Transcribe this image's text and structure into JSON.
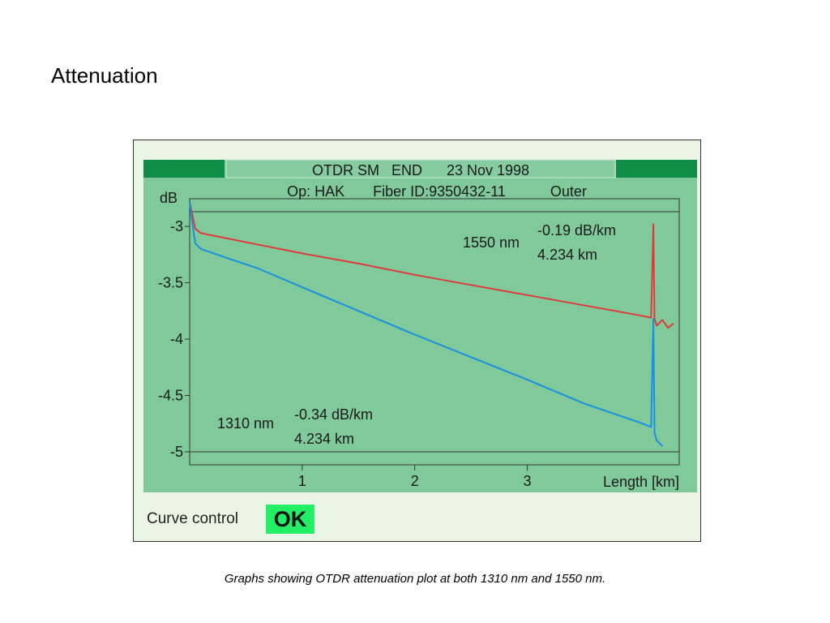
{
  "slide": {
    "title": "Attenuation",
    "caption": "Graphs showing OTDR attenuation plot at both 1310 nm and 1550 nm."
  },
  "otdr": {
    "header_line1": "OTDR SM   END      23 Nov 1998",
    "header_line2": "Op: HAK       Fiber ID:9350432-11           Outer",
    "curve_control_label": "Curve control",
    "status": "OK",
    "colors": {
      "panel_bg": "#eaf5e5",
      "plot_bg": "#80c99a",
      "header_bar": "#0f8c45",
      "header_box": "#7ec89a",
      "ok_bg": "#22ee66"
    }
  },
  "chart_data": {
    "type": "line",
    "title": "",
    "xlabel": "Length [km]",
    "ylabel": "dB",
    "xlim": [
      0,
      4.35
    ],
    "ylim": [
      -5.1,
      -2.7
    ],
    "x_ticks": [
      1,
      2,
      3
    ],
    "y_ticks": [
      -3,
      -3.5,
      -4,
      -4.5,
      -5
    ],
    "y_tick_labels": [
      "-3",
      "-3.5",
      "-4",
      "-4.5",
      "-5"
    ],
    "x_tick_labels": [
      "1",
      "2",
      "3"
    ],
    "grid": false,
    "series": [
      {
        "name": "1550 nm",
        "color": "#e03a3a",
        "annotation": [
          "-0.19 dB/km",
          "4.234 km"
        ],
        "x": [
          0.0,
          0.02,
          0.05,
          0.1,
          0.3,
          0.6,
          1.0,
          1.5,
          2.0,
          2.5,
          3.0,
          3.5,
          4.0,
          4.1,
          4.12,
          4.13,
          4.15,
          4.2,
          4.25,
          4.3
        ],
        "y": [
          -2.78,
          -2.88,
          -3.02,
          -3.06,
          -3.1,
          -3.16,
          -3.24,
          -3.33,
          -3.43,
          -3.52,
          -3.61,
          -3.7,
          -3.79,
          -3.81,
          -2.98,
          -3.82,
          -3.88,
          -3.83,
          -3.9,
          -3.86
        ]
      },
      {
        "name": "1310 nm",
        "color": "#1a90e0",
        "annotation": [
          "-0.34 dB/km",
          "4.234 km"
        ],
        "x": [
          0.0,
          0.02,
          0.05,
          0.1,
          0.3,
          0.6,
          1.0,
          1.5,
          2.0,
          2.5,
          3.0,
          3.5,
          4.0,
          4.1,
          4.12,
          4.13,
          4.15,
          4.2
        ],
        "y": [
          -2.78,
          -2.95,
          -3.15,
          -3.2,
          -3.27,
          -3.37,
          -3.54,
          -3.75,
          -3.96,
          -4.16,
          -4.36,
          -4.57,
          -4.74,
          -4.78,
          -3.82,
          -4.83,
          -4.9,
          -4.95
        ]
      }
    ]
  }
}
